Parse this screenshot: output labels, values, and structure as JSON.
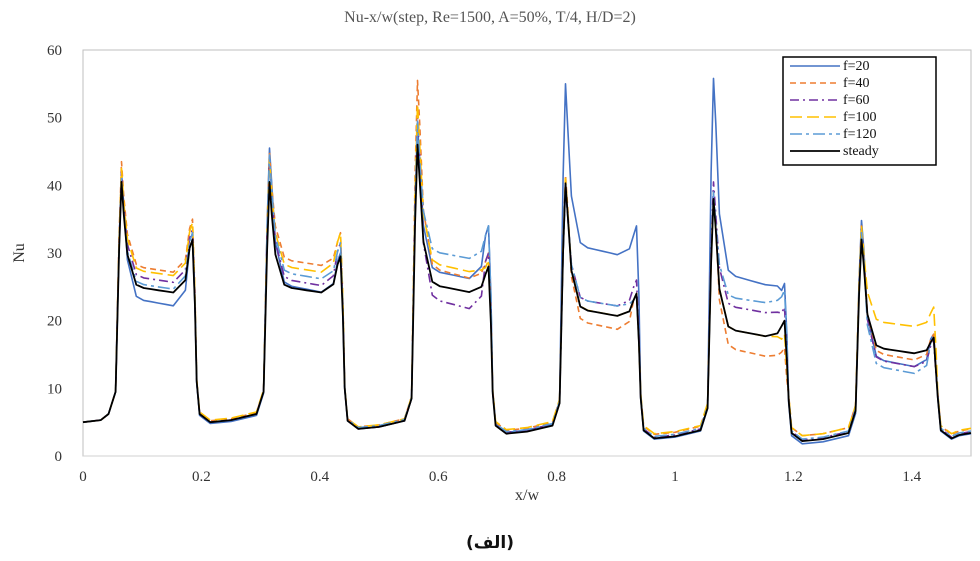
{
  "chart_data": {
    "type": "line",
    "title": "Nu-x/w(step, Re=1500, A=50%, T/4, H/D=2)",
    "xlabel": "x/w",
    "ylabel": "Nu",
    "xlim": [
      0,
      1.5
    ],
    "ylim": [
      0,
      60
    ],
    "xticks": [
      0,
      0.2,
      0.4,
      0.6,
      0.8,
      1,
      1.2,
      1.4
    ],
    "xtick_labels": [
      "0",
      "0.2",
      "0.4",
      "0.6",
      "0.8",
      "1",
      "1.2",
      "1.4"
    ],
    "yticks": [
      0,
      10,
      20,
      30,
      40,
      50,
      60
    ],
    "ytick_labels": [
      "0",
      "10",
      "20",
      "30",
      "40",
      "50",
      "60"
    ],
    "grid": false,
    "legend_position": "top-right",
    "series": [
      {
        "name": "f=20",
        "color": "#4472C4",
        "dash": "solid",
        "peaks": [
          42.0,
          32.0,
          45.5,
          30.0,
          49.0,
          34.0,
          55.0,
          34.0,
          55.8,
          25.5,
          34.8,
          18.0
        ],
        "plateaus": [
          22.0,
          24.0,
          26.0,
          29.5,
          25.0,
          13.0
        ],
        "troughs": [
          5.0,
          4.8,
          4.0,
          3.5,
          2.5,
          1.8,
          2.5
        ]
      },
      {
        "name": "f=40",
        "color": "#ED7D31",
        "dash": "dash",
        "peaks": [
          43.5,
          35.0,
          45.0,
          33.0,
          55.5,
          30.0,
          41.5,
          24.0,
          39.0,
          16.0,
          34.0,
          18.0
        ],
        "plateaus": [
          27.0,
          28.0,
          26.0,
          18.5,
          14.5,
          14.0
        ],
        "troughs": [
          5.0,
          5.2,
          4.3,
          3.8,
          3.2,
          3.0,
          3.2
        ]
      },
      {
        "name": "f=60",
        "color": "#7030A0",
        "dash": "dashdot",
        "peaks": [
          42.0,
          33.5,
          44.0,
          31.5,
          50.0,
          30.0,
          40.0,
          26.0,
          40.5,
          22.0,
          33.5,
          17.0
        ],
        "plateaus": [
          25.5,
          25.0,
          21.5,
          22.0,
          21.0,
          13.0
        ],
        "troughs": [
          5.0,
          5.0,
          4.0,
          3.5,
          2.8,
          2.4,
          2.8
        ]
      },
      {
        "name": "f=100",
        "color": "#FFC000",
        "dash": "longdash",
        "peaks": [
          42.5,
          34.5,
          44.0,
          33.0,
          52.0,
          29.0,
          41.0,
          24.0,
          38.0,
          18.0,
          34.0,
          22.0
        ],
        "plateaus": [
          26.5,
          27.0,
          27.0,
          20.5,
          17.5,
          19.0
        ],
        "troughs": [
          5.0,
          5.3,
          4.3,
          3.9,
          3.3,
          3.0,
          3.3
        ]
      },
      {
        "name": "f=120",
        "color": "#5B9BD5",
        "dash": "dashdotlong",
        "peaks": [
          41.0,
          33.0,
          44.5,
          31.5,
          49.5,
          34.0,
          40.0,
          24.0,
          39.0,
          24.5,
          33.0,
          17.5
        ],
        "plateaus": [
          24.5,
          26.0,
          29.0,
          22.0,
          22.5,
          12.0
        ],
        "troughs": [
          5.0,
          5.0,
          4.2,
          3.6,
          2.9,
          2.5,
          2.9
        ]
      },
      {
        "name": "steady",
        "color": "#000000",
        "dash": "solid",
        "peaks": [
          40.5,
          32.0,
          40.5,
          29.5,
          46.0,
          28.0,
          40.3,
          24.0,
          38.0,
          20.0,
          32.0,
          17.5
        ],
        "plateaus": [
          24.0,
          24.0,
          24.0,
          20.5,
          17.5,
          15.0
        ],
        "troughs": [
          5.0,
          5.0,
          4.0,
          3.3,
          2.6,
          2.2,
          2.6
        ]
      }
    ]
  },
  "caption": "(الف)"
}
